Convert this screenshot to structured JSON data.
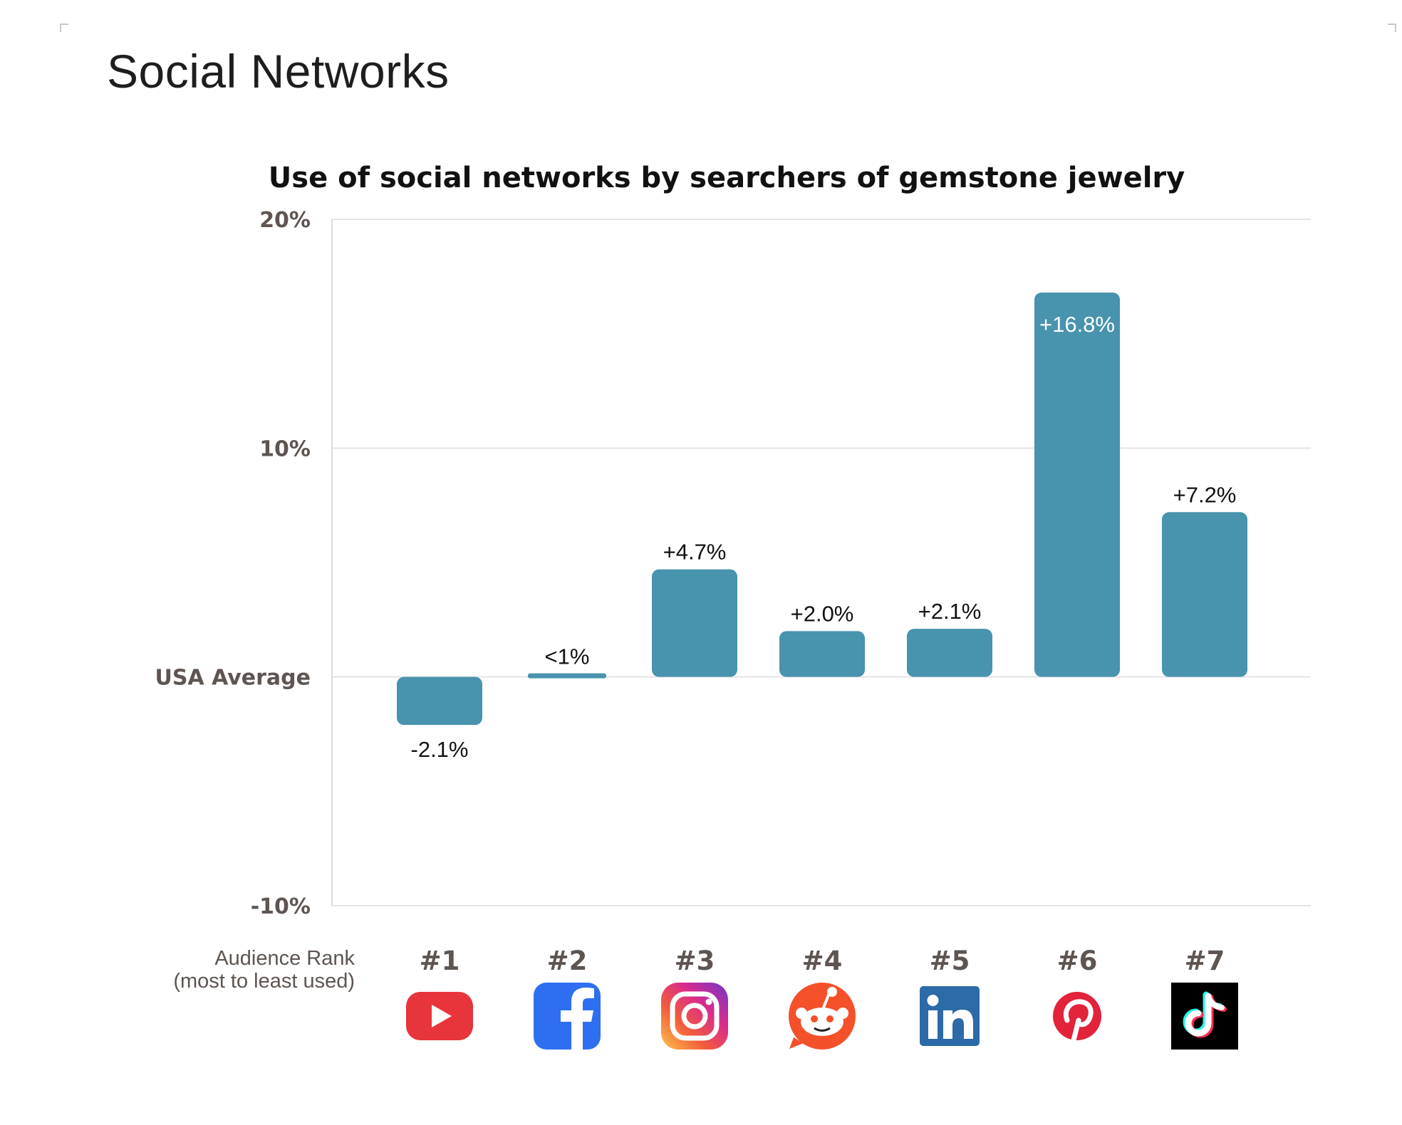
{
  "page": {
    "title": "Social Networks"
  },
  "chart_data": {
    "type": "bar",
    "title": "Use of social networks by searchers of gemstone jewelry",
    "xlabel": "Audience Rank",
    "xlabel_sub": "(most to least used)",
    "ylabel": "",
    "ylim": [
      -10,
      20
    ],
    "yticks": [
      {
        "value": 20,
        "label": "20%"
      },
      {
        "value": 10,
        "label": "10%"
      },
      {
        "value": 0,
        "label": "USA Average"
      },
      {
        "value": -10,
        "label": "-10%"
      }
    ],
    "grid": true,
    "bar_color": "#4893ad",
    "categories": [
      {
        "rank": "#1",
        "network": "YouTube",
        "icon": "youtube-icon",
        "value": -2.1,
        "label": "-2.1%"
      },
      {
        "rank": "#2",
        "network": "Facebook",
        "icon": "facebook-icon",
        "value": 0.3,
        "label": "<1%"
      },
      {
        "rank": "#3",
        "network": "Instagram",
        "icon": "instagram-icon",
        "value": 4.7,
        "label": "+4.7%"
      },
      {
        "rank": "#4",
        "network": "Reddit",
        "icon": "reddit-icon",
        "value": 2.0,
        "label": "+2.0%"
      },
      {
        "rank": "#5",
        "network": "LinkedIn",
        "icon": "linkedin-icon",
        "value": 2.1,
        "label": "+2.1%"
      },
      {
        "rank": "#6",
        "network": "Pinterest",
        "icon": "pinterest-icon",
        "value": 16.8,
        "label": "+16.8%"
      },
      {
        "rank": "#7",
        "network": "TikTok",
        "icon": "tiktok-icon",
        "value": 7.2,
        "label": "+7.2%"
      }
    ],
    "icon_colors": {
      "youtube": "#e8343b",
      "facebook": "#2d6ff0",
      "reddit": "#f4502a",
      "linkedin": "#2c6aa8",
      "pinterest": "#e2233a",
      "tiktok": "#000000"
    }
  }
}
